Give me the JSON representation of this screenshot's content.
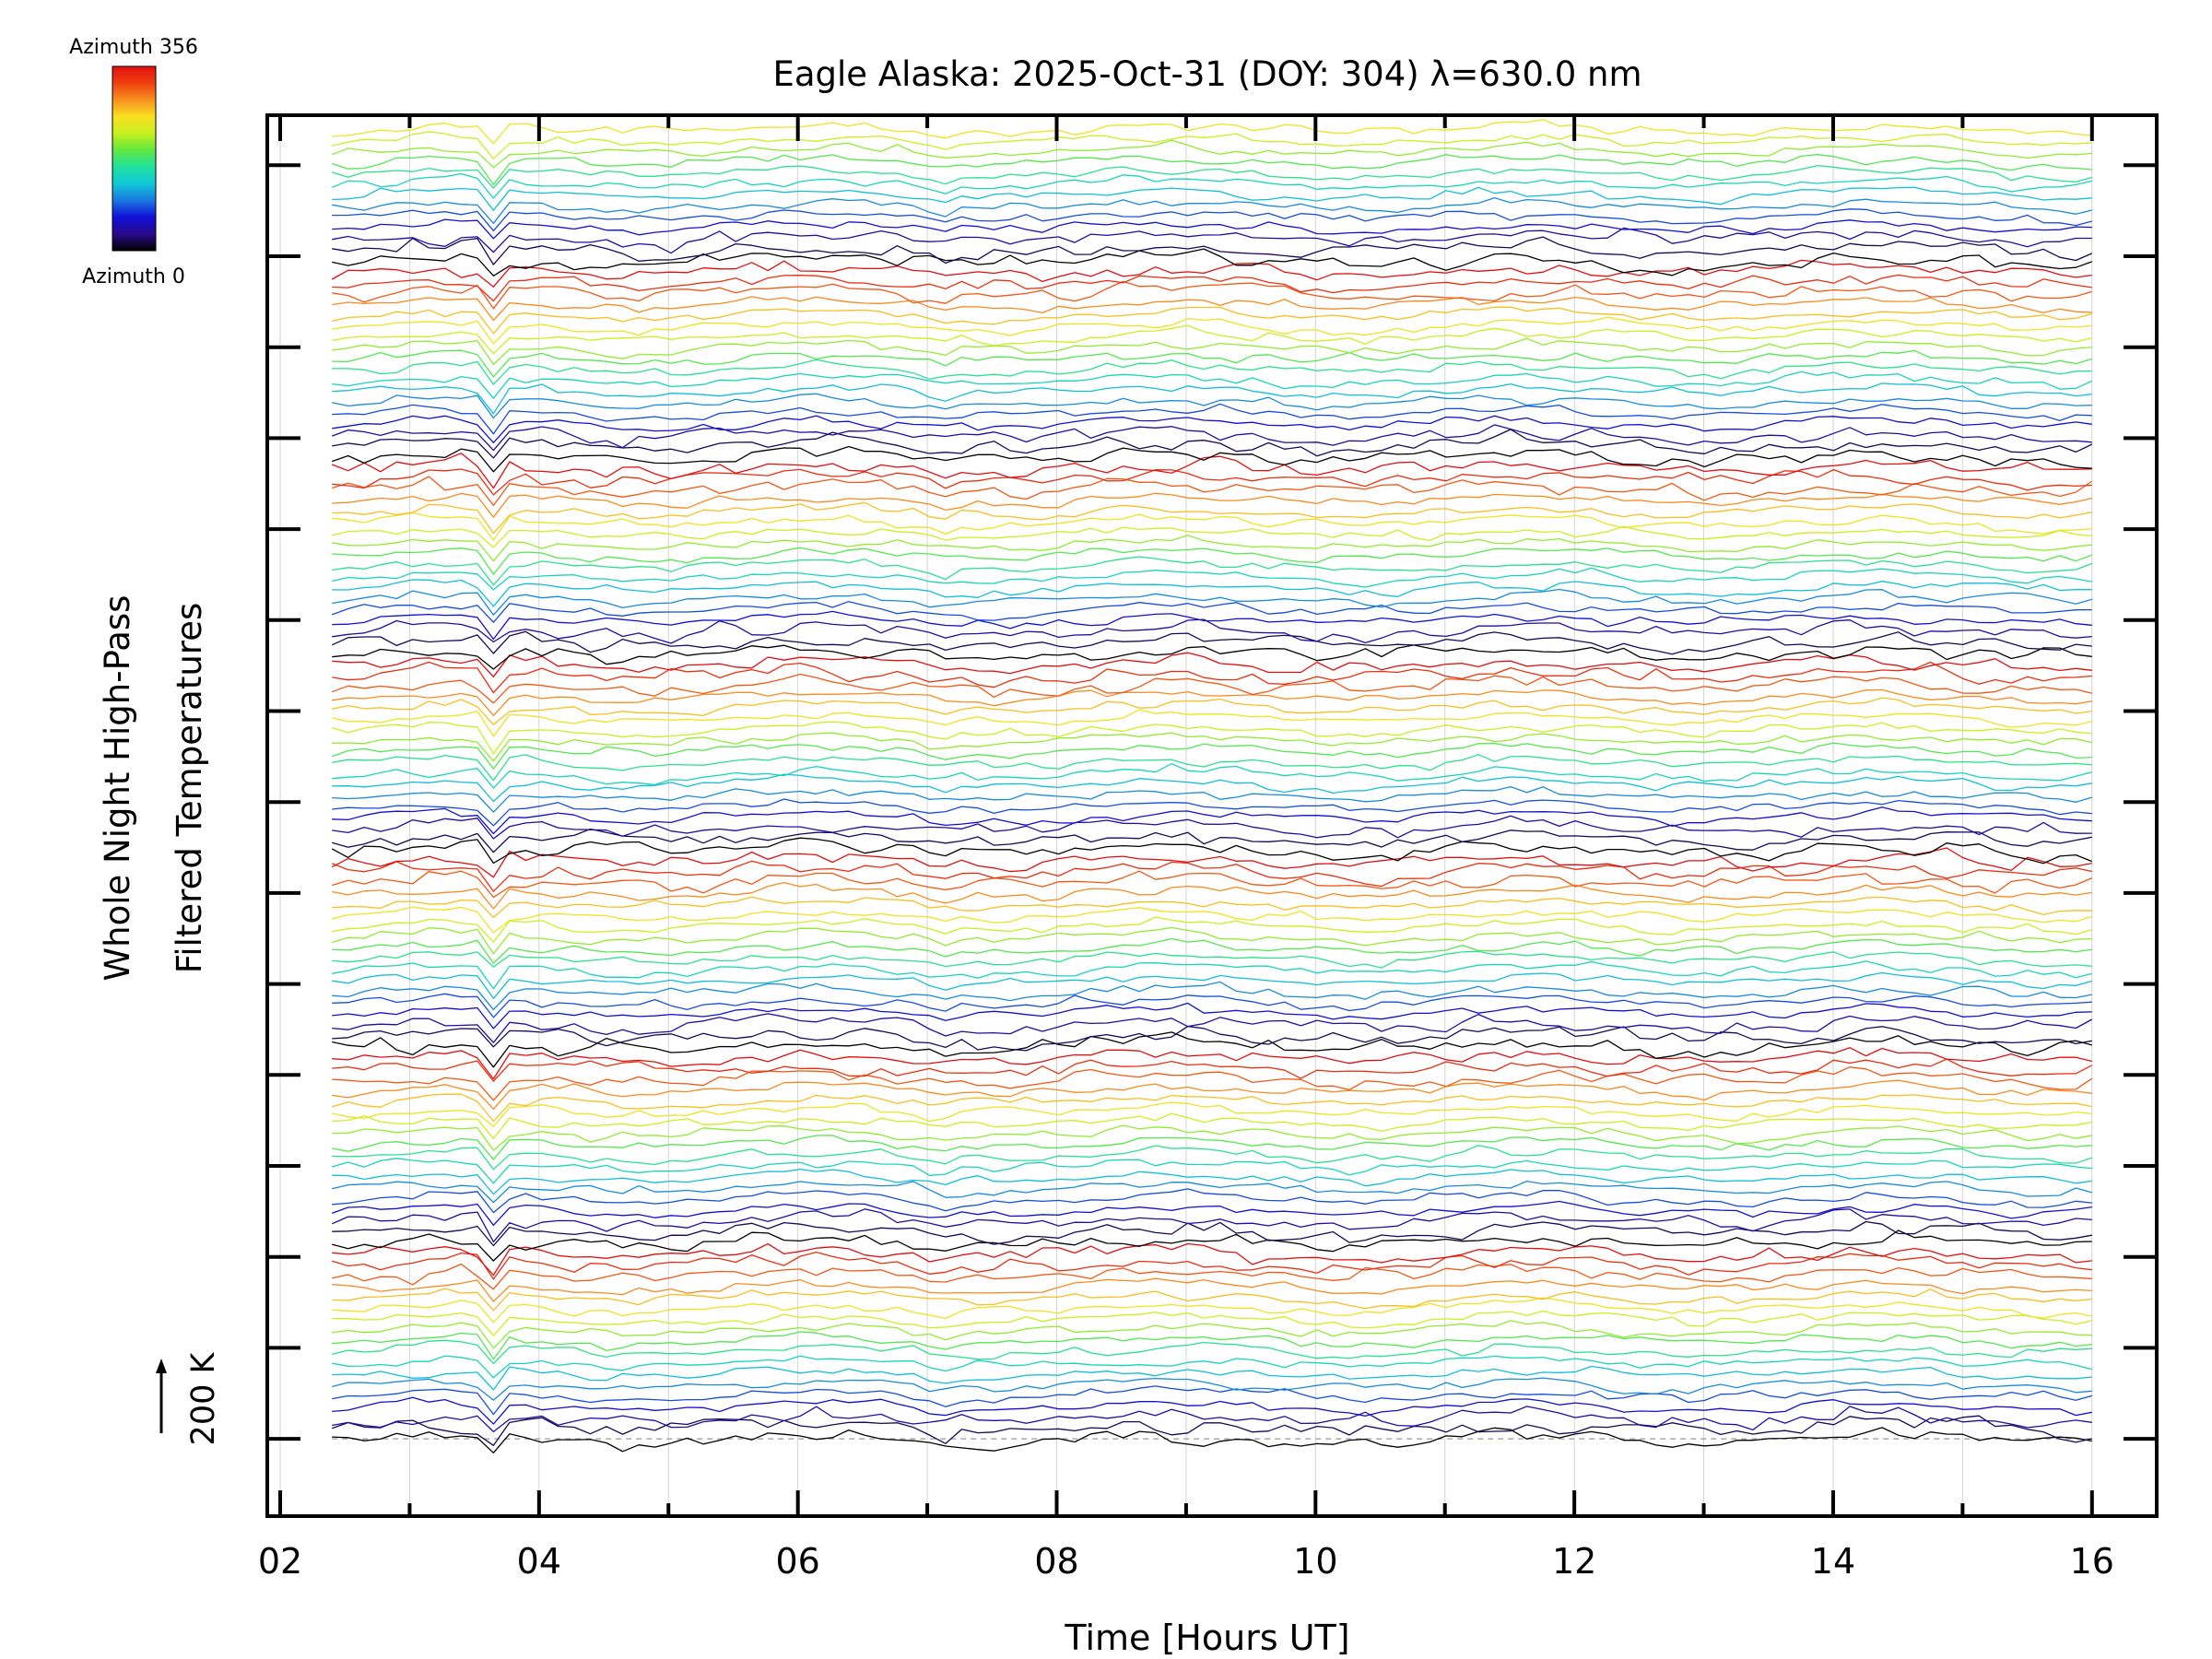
{
  "chart_data": {
    "type": "line",
    "title": "Eagle Alaska: 2025-Oct-31 (DOY: 304) λ=630.0 nm",
    "xlabel": "Time [Hours UT]",
    "ylabel_line1": "Whole Night High-Pass",
    "ylabel_line2": "Filtered Temperatures",
    "scale_label": "200 K",
    "xlim": [
      1.9,
      16.5
    ],
    "x_tick_labels": [
      "02",
      "04",
      "06",
      "08",
      "10",
      "12",
      "14",
      "16"
    ],
    "x_major_ticks": [
      2,
      4,
      6,
      8,
      10,
      12,
      14,
      16
    ],
    "x_minor_ticks": [
      3,
      5,
      7,
      9,
      11,
      13,
      15
    ],
    "x_start": 2.4,
    "x_end": 16.0,
    "n_time_samples": 110,
    "ylim": [
      -0.85,
      14.55
    ],
    "y_major_ticks": [
      0,
      1,
      2,
      3,
      4,
      5,
      6,
      7,
      8,
      9,
      10,
      11,
      12,
      13,
      14
    ],
    "baseline_offset": 0,
    "n_series": 121,
    "offset_step": 0.12,
    "band_size": 18,
    "colorbar": {
      "label_top": "Azimuth 356",
      "label_bottom": "Azimuth 0",
      "colors": [
        "#000000",
        "#2a0a8a",
        "#1010d8",
        "#1a78e0",
        "#10c8d8",
        "#20e0a0",
        "#60e840",
        "#c8f020",
        "#f8e020",
        "#f89020",
        "#f04010",
        "#e01010"
      ]
    }
  }
}
